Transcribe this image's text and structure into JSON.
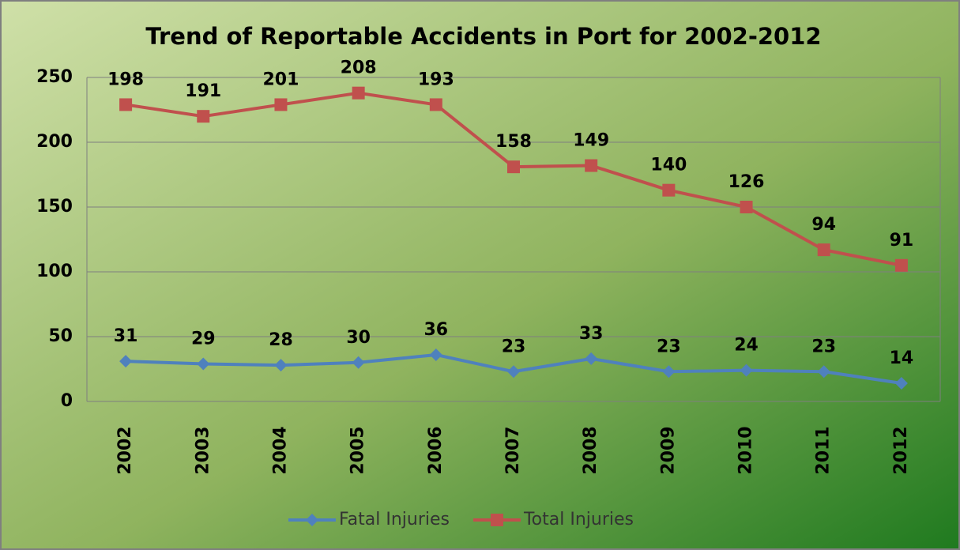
{
  "chart_data": {
    "type": "line",
    "stacked": true,
    "title": "Trend of Reportable Accidents in Port for 2002-2012",
    "categories": [
      "2002",
      "2003",
      "2004",
      "2005",
      "2006",
      "2007",
      "2008",
      "2009",
      "2010",
      "2011",
      "2012"
    ],
    "series": [
      {
        "name": "Fatal Injuries",
        "color": "#4f81bd",
        "marker": "diamond",
        "values": [
          31,
          29,
          28,
          30,
          36,
          23,
          33,
          23,
          24,
          23,
          14
        ]
      },
      {
        "name": "Total Injuries",
        "color": "#c0504d",
        "marker": "square",
        "values": [
          198,
          191,
          201,
          208,
          193,
          158,
          149,
          140,
          126,
          94,
          91
        ]
      }
    ],
    "ylim": [
      0,
      250
    ],
    "yticks": [
      0,
      50,
      100,
      150,
      200,
      250
    ],
    "grid": true,
    "legend": "bottom"
  }
}
